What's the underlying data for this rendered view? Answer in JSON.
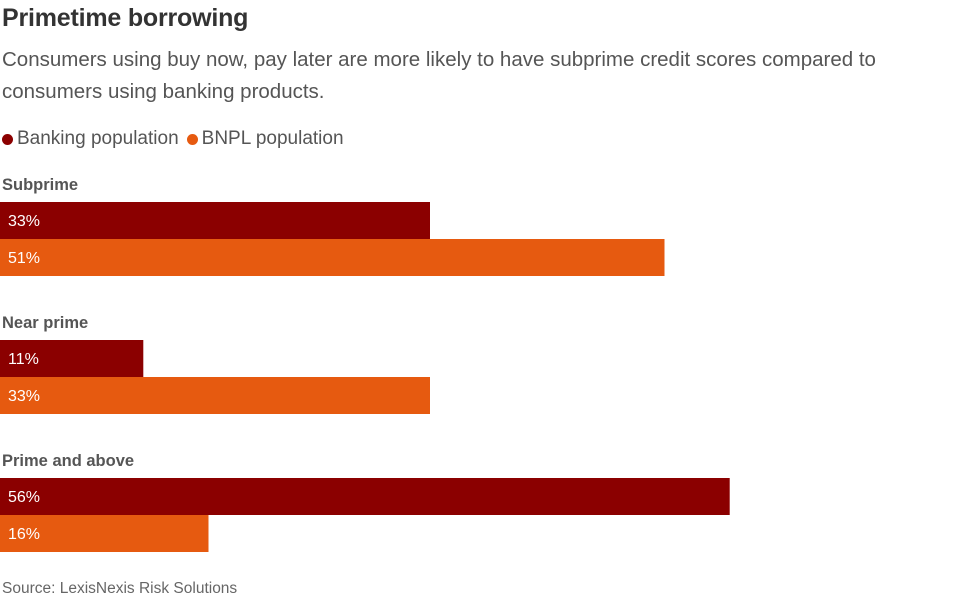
{
  "title": "Primetime borrowing",
  "subtitle": "Consumers using buy now, pay later are more likely to have subprime credit scores compared to consumers using banking products.",
  "source": "Source: LexisNexis Risk Solutions",
  "colors": {
    "banking": "#8b0000",
    "bnpl": "#e65a10"
  },
  "chart_data": {
    "type": "bar",
    "orientation": "horizontal",
    "categories": [
      "Subprime",
      "Near prime",
      "Prime and above"
    ],
    "series": [
      {
        "name": "Banking population",
        "values": [
          33,
          11,
          56
        ],
        "labels": [
          "33%",
          "11%",
          "56%"
        ],
        "color": "#8b0000"
      },
      {
        "name": "BNPL population",
        "values": [
          51,
          33,
          16
        ],
        "labels": [
          "51%",
          "33%",
          "16%"
        ],
        "color": "#e65a10"
      }
    ],
    "xlim": [
      0,
      75
    ],
    "unit": "%",
    "grid": false,
    "legend_position": "top-left"
  }
}
